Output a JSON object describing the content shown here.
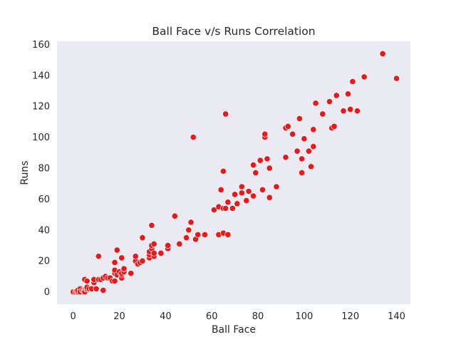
{
  "chart_data": {
    "type": "scatter",
    "title": "Ball Face v/s Runs Correlation",
    "xlabel": "Ball Face",
    "ylabel": "Runs",
    "xlim": [
      -7,
      146
    ],
    "ylim": [
      -8,
      162
    ],
    "xticks": [
      0,
      20,
      40,
      60,
      80,
      100,
      120,
      140
    ],
    "yticks": [
      0,
      20,
      40,
      60,
      80,
      100,
      120,
      140,
      160
    ],
    "grid": false,
    "legend": "none",
    "marker_color": "#e41a1c",
    "background_color": "#eaeaf2",
    "points": [
      [
        0,
        0
      ],
      [
        1,
        0
      ],
      [
        1.5,
        0.5
      ],
      [
        2,
        0
      ],
      [
        2,
        1
      ],
      [
        3,
        2
      ],
      [
        3,
        0
      ],
      [
        4,
        1
      ],
      [
        4.5,
        0.5
      ],
      [
        5,
        1
      ],
      [
        5,
        0
      ],
      [
        5.5,
        2
      ],
      [
        6,
        2
      ],
      [
        6,
        3
      ],
      [
        5,
        8
      ],
      [
        6,
        7
      ],
      [
        7,
        2
      ],
      [
        8,
        2
      ],
      [
        9,
        6
      ],
      [
        9,
        8
      ],
      [
        10,
        2
      ],
      [
        11,
        23
      ],
      [
        11,
        8
      ],
      [
        12,
        8
      ],
      [
        13,
        1
      ],
      [
        13,
        9
      ],
      [
        14,
        10
      ],
      [
        15,
        9
      ],
      [
        16,
        9
      ],
      [
        17,
        7
      ],
      [
        18,
        7
      ],
      [
        18,
        12
      ],
      [
        18,
        14
      ],
      [
        18,
        19
      ],
      [
        19,
        27
      ],
      [
        19,
        11
      ],
      [
        20,
        13
      ],
      [
        21,
        9
      ],
      [
        21,
        11
      ],
      [
        21,
        12
      ],
      [
        21,
        22
      ],
      [
        22,
        13
      ],
      [
        22,
        15
      ],
      [
        25,
        12
      ],
      [
        27,
        20
      ],
      [
        27,
        23
      ],
      [
        28,
        18
      ],
      [
        29,
        19
      ],
      [
        30,
        35
      ],
      [
        30,
        20
      ],
      [
        33,
        22
      ],
      [
        33,
        24
      ],
      [
        33,
        26
      ],
      [
        34,
        28
      ],
      [
        34,
        30
      ],
      [
        34,
        43
      ],
      [
        35,
        23
      ],
      [
        35,
        25
      ],
      [
        35,
        31
      ],
      [
        38,
        25
      ],
      [
        41,
        28
      ],
      [
        41,
        30
      ],
      [
        44,
        49
      ],
      [
        46,
        31
      ],
      [
        49,
        35
      ],
      [
        50,
        40
      ],
      [
        51,
        45
      ],
      [
        52,
        100
      ],
      [
        53,
        34
      ],
      [
        54,
        37
      ],
      [
        57,
        37
      ],
      [
        61,
        53
      ],
      [
        63,
        37
      ],
      [
        63,
        55
      ],
      [
        64,
        66
      ],
      [
        65,
        38
      ],
      [
        65,
        54
      ],
      [
        65,
        78
      ],
      [
        66,
        54
      ],
      [
        66,
        115
      ],
      [
        67,
        37
      ],
      [
        67,
        58
      ],
      [
        69,
        54
      ],
      [
        70,
        63
      ],
      [
        71,
        57
      ],
      [
        73,
        64
      ],
      [
        73,
        68
      ],
      [
        75,
        59
      ],
      [
        76,
        65
      ],
      [
        78,
        62
      ],
      [
        78,
        82
      ],
      [
        79,
        77
      ],
      [
        81,
        85
      ],
      [
        82,
        66
      ],
      [
        83,
        100
      ],
      [
        83,
        102
      ],
      [
        84,
        86
      ],
      [
        85,
        80
      ],
      [
        85,
        61
      ],
      [
        88,
        68
      ],
      [
        92,
        87
      ],
      [
        92,
        106
      ],
      [
        93,
        107
      ],
      [
        95,
        102
      ],
      [
        97,
        91
      ],
      [
        98,
        112
      ],
      [
        99,
        77
      ],
      [
        99,
        86
      ],
      [
        100,
        99
      ],
      [
        102,
        91
      ],
      [
        103,
        81
      ],
      [
        104,
        94
      ],
      [
        104,
        105
      ],
      [
        105,
        122
      ],
      [
        108,
        115
      ],
      [
        111,
        123
      ],
      [
        112,
        106
      ],
      [
        113,
        107
      ],
      [
        114,
        127
      ],
      [
        117,
        117
      ],
      [
        119,
        128
      ],
      [
        120,
        118
      ],
      [
        121,
        136
      ],
      [
        123,
        117
      ],
      [
        126,
        139
      ],
      [
        134,
        154
      ],
      [
        140,
        138
      ]
    ]
  }
}
